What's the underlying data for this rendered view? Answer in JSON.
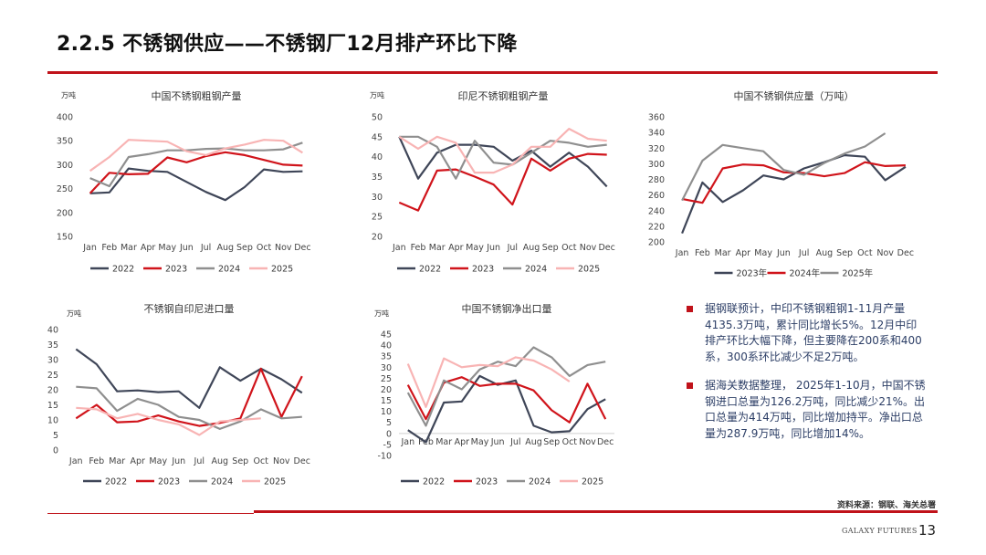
{
  "slide": {
    "title": "2.2.5 不锈钢供应——不锈钢厂12月排产环比下降",
    "source": "资料来源：钢联、海关总署",
    "footer_brand": "GALAXY FUTURES",
    "page_number": "13"
  },
  "colors": {
    "accent": "#c0121a",
    "series": [
      "#3f4658",
      "#d0141b",
      "#8f8f8f",
      "#f8b4b4"
    ],
    "note_text": "#2c3e66"
  },
  "notes": [
    {
      "text": "据钢联预计，中印不锈钢粗钢1-11月产量4135.3万吨，累计同比增长5%。12月中印排产环比大幅下降，但主要降在200系和400系，300系环比减少不足2万吨。"
    },
    {
      "text": "据海关数据整理， 2025年1-10月，中国不锈钢进口总量为126.2万吨，同比减少21%。出口总量为414万吨，同比增加持平。净出口总量为287.9万吨，同比增加14%。"
    }
  ],
  "chart_data": [
    {
      "type": "line",
      "title": "中国不锈钢粗钢产量",
      "unit": "万吨",
      "categories": [
        "Jan",
        "Feb",
        "Mar",
        "Apr",
        "May",
        "Jun",
        "Jul",
        "Aug",
        "Sep",
        "Oct",
        "Nov",
        "Dec"
      ],
      "ylim": [
        150,
        400
      ],
      "yticks": [
        150,
        200,
        250,
        300,
        350,
        400
      ],
      "series": [
        {
          "name": "2022",
          "values": [
            240,
            242,
            292,
            287,
            285,
            264,
            243,
            226,
            253,
            290,
            285,
            286
          ]
        },
        {
          "name": "2023",
          "values": [
            240,
            283,
            280,
            281,
            315,
            305,
            318,
            326,
            320,
            310,
            300,
            298
          ]
        },
        {
          "name": "2024",
          "values": [
            272,
            255,
            316,
            322,
            330,
            330,
            333,
            334,
            330,
            330,
            332,
            346
          ]
        },
        {
          "name": "2025",
          "values": [
            287,
            316,
            352,
            350,
            348,
            328,
            320,
            334,
            342,
            352,
            350,
            325
          ]
        }
      ]
    },
    {
      "type": "line",
      "title": "印尼不锈钢粗钢产量",
      "unit": "万吨",
      "categories": [
        "Jan",
        "Feb",
        "Mar",
        "Apr",
        "May",
        "Jun",
        "Jul",
        "Aug",
        "Sep",
        "Oct",
        "Nov",
        "Dec"
      ],
      "ylim": [
        20,
        50
      ],
      "yticks": [
        20,
        25,
        30,
        35,
        40,
        45,
        50
      ],
      "series": [
        {
          "name": "2022",
          "values": [
            45,
            34.5,
            41,
            43,
            43,
            42.5,
            39,
            41.5,
            37.5,
            41,
            37.5,
            32.5
          ]
        },
        {
          "name": "2023",
          "values": [
            28.5,
            26.5,
            36.5,
            36.8,
            35,
            33,
            28,
            39.5,
            36.5,
            39.5,
            40.7,
            40.5
          ]
        },
        {
          "name": "2024",
          "values": [
            45,
            45,
            42.5,
            34.5,
            44,
            38.5,
            38,
            41,
            44,
            43.5,
            42.5,
            43
          ]
        },
        {
          "name": "2025",
          "values": [
            45,
            42,
            45,
            43.5,
            36,
            36,
            38,
            42.5,
            42.5,
            47,
            44.5,
            44
          ]
        }
      ]
    },
    {
      "type": "line",
      "title": "中国不锈钢供应量（万吨）",
      "unit": "",
      "categories": [
        "Jan",
        "Feb",
        "Mar",
        "Apr",
        "May",
        "Jun",
        "Jul",
        "Aug",
        "Sep",
        "Oct",
        "Nov",
        "Dec"
      ],
      "ylim": [
        200,
        360
      ],
      "yticks": [
        200,
        220,
        240,
        260,
        280,
        300,
        320,
        340,
        360
      ],
      "series": [
        {
          "name": "2023年",
          "values": [
            211,
            276,
            251,
            266,
            285,
            280,
            294,
            302,
            311,
            309,
            279,
            296
          ]
        },
        {
          "name": "2024年",
          "values": [
            255,
            250,
            294,
            299,
            298,
            289,
            288,
            284,
            288,
            302,
            297,
            298
          ]
        },
        {
          "name": "2025年",
          "values": [
            253,
            304,
            324,
            320,
            316,
            292,
            286,
            301,
            313,
            322,
            339,
            null
          ]
        }
      ]
    },
    {
      "type": "line",
      "title": "不锈钢自印尼进口量",
      "unit": "万吨",
      "categories": [
        "Jan",
        "Feb",
        "Mar",
        "Apr",
        "May",
        "Jun",
        "Jul",
        "Aug",
        "Sep",
        "Oct",
        "Nov",
        "Dec"
      ],
      "ylim": [
        0,
        40
      ],
      "yticks": [
        0,
        5,
        10,
        15,
        20,
        25,
        30,
        35,
        40
      ],
      "series": [
        {
          "name": "2022",
          "values": [
            33.5,
            28.5,
            19.5,
            19.8,
            19.2,
            19.5,
            14,
            27.5,
            23,
            27,
            23.5,
            19
          ]
        },
        {
          "name": "2023",
          "values": [
            10.5,
            15,
            9.2,
            9.5,
            11.5,
            9.5,
            8,
            9,
            10.5,
            27,
            11,
            24.5
          ]
        },
        {
          "name": "2024",
          "values": [
            21,
            20.5,
            13,
            17,
            15,
            11,
            10,
            7,
            9.5,
            13.5,
            10.5,
            11
          ]
        },
        {
          "name": "2025",
          "values": [
            14,
            13.5,
            10.5,
            12,
            10,
            8.5,
            5,
            9.5,
            10,
            10.5,
            null,
            null
          ]
        }
      ]
    },
    {
      "type": "line",
      "title": "中国不锈钢净出口量",
      "unit": "万吨",
      "categories": [
        "Jan",
        "Feb",
        "Mar",
        "Apr",
        "May",
        "Jun",
        "Jul",
        "Aug",
        "Sep",
        "Oct",
        "Nov",
        "Dec"
      ],
      "ylim": [
        -10,
        45
      ],
      "yticks": [
        -10,
        -5,
        0,
        5,
        10,
        15,
        20,
        25,
        30,
        35,
        40,
        45
      ],
      "series": [
        {
          "name": "2022",
          "values": [
            1.5,
            -4,
            14,
            14.5,
            26,
            22,
            24,
            3.5,
            0.5,
            1,
            11,
            15.5
          ]
        },
        {
          "name": "2023",
          "values": [
            22,
            6.5,
            23,
            25.5,
            21.5,
            22.5,
            22.5,
            19.5,
            10.5,
            5,
            22.5,
            6.5
          ]
        },
        {
          "name": "2024",
          "values": [
            18.5,
            3.5,
            24,
            20,
            29,
            32.5,
            30.5,
            39,
            34.5,
            26,
            31,
            32.5
          ]
        },
        {
          "name": "2025",
          "values": [
            31.5,
            12,
            34,
            30,
            31,
            30.5,
            34.5,
            33,
            29,
            23.5,
            null,
            null
          ]
        }
      ]
    }
  ]
}
